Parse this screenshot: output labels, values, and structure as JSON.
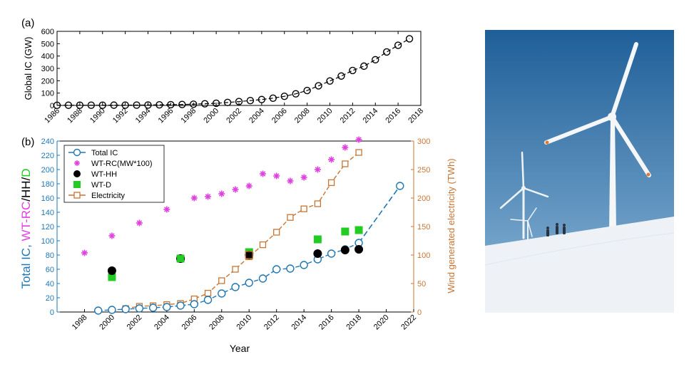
{
  "panel_a": {
    "label": "(a)",
    "chart_data": {
      "type": "line",
      "ylabel": "Global IC (GW)",
      "xlim": [
        1986,
        2018
      ],
      "ylim": [
        0,
        600
      ],
      "xticks": [
        "1986",
        "1988",
        "1990",
        "1992",
        "1994",
        "1996",
        "1998",
        "2000",
        "2002",
        "2004",
        "2006",
        "2008",
        "2010",
        "2012",
        "2014",
        "2016",
        "2018"
      ],
      "yticks": [
        "0",
        "100",
        "200",
        "300",
        "400",
        "500",
        "600"
      ],
      "series": [
        {
          "x": [
            1986,
            1987,
            1988,
            1989,
            1990,
            1991,
            1992,
            1993,
            1994,
            1995,
            1996,
            1997,
            1998,
            1999,
            2000,
            2001,
            2002,
            2003,
            2004,
            2005,
            2006,
            2007,
            2008,
            2009,
            2010,
            2011,
            2012,
            2013,
            2014,
            2015,
            2016,
            2017
          ],
          "y": [
            1,
            1.5,
            1.6,
            1.7,
            2,
            2.2,
            2.5,
            2.8,
            3.5,
            4.8,
            6.1,
            7.5,
            10,
            13.6,
            17.4,
            23.9,
            31.1,
            39.4,
            47.6,
            59,
            74,
            94,
            121,
            159,
            198,
            238,
            283,
            318,
            370,
            433,
            487,
            540
          ]
        }
      ]
    }
  },
  "panel_b": {
    "label": "(b)",
    "ylabel_parts": [
      {
        "text": "Total IC, ",
        "color": "#1f77b4"
      },
      {
        "text": "WT-RC",
        "color": "#e040e0"
      },
      {
        "text": "/HH/",
        "color": "#000000"
      },
      {
        "text": "D",
        "color": "#22cc22"
      }
    ],
    "chart_data": {
      "type": "line",
      "xlabel": "Year",
      "ylabel_right": "Wind generated electricity (TWh)",
      "xlim": [
        1996,
        2022
      ],
      "ylim_left": [
        0,
        240
      ],
      "ylim_right": [
        0,
        300
      ],
      "xticks": [
        "1998",
        "2000",
        "2002",
        "2004",
        "2006",
        "2008",
        "2010",
        "2012",
        "2014",
        "2016",
        "2018",
        "2020",
        "2022"
      ],
      "yticks_left": [
        "0",
        "20",
        "40",
        "60",
        "80",
        "100",
        "120",
        "140",
        "160",
        "180",
        "200",
        "220",
        "240"
      ],
      "yticks_right": [
        "0",
        "50",
        "100",
        "150",
        "200",
        "250",
        "300"
      ],
      "legend_position": "top-left",
      "series": [
        {
          "name": "Total IC",
          "color": "#1f77b4",
          "x": [
            1999,
            2000,
            2001,
            2002,
            2003,
            2004,
            2005,
            2006,
            2007,
            2008,
            2009,
            2010,
            2011,
            2012,
            2013,
            2014,
            2015,
            2016,
            2017,
            2018
          ],
          "y": [
            2,
            3,
            4,
            5,
            6,
            7,
            9,
            11,
            17,
            26,
            35,
            41,
            47,
            60,
            61,
            66,
            74,
            82,
            88,
            97
          ],
          "projection": {
            "x": [
              2018,
              2021
            ],
            "y": [
              97,
              177
            ]
          }
        },
        {
          "name": "WT-RC(MW*100)",
          "color": "#e040e0",
          "x": [
            1998,
            2000,
            2002,
            2004,
            2006,
            2007,
            2008,
            2009,
            2010,
            2011,
            2012,
            2013,
            2014,
            2015,
            2016,
            2017,
            2018
          ],
          "y": [
            83,
            107,
            125,
            144,
            160,
            162,
            166,
            172,
            177,
            194,
            191,
            184,
            189,
            200,
            214,
            231,
            242
          ]
        },
        {
          "name": "WT-HH",
          "color": "#000000",
          "x": [
            2000,
            2005,
            2010,
            2015,
            2017,
            2018
          ],
          "y": [
            58,
            75,
            80,
            82,
            87,
            88
          ]
        },
        {
          "name": "WT-D",
          "color": "#22cc22",
          "x": [
            2000,
            2005,
            2010,
            2015,
            2017,
            2018
          ],
          "y": [
            49,
            75,
            84,
            102,
            113,
            115
          ]
        },
        {
          "name": "Electricity",
          "color": "#c87533",
          "axis": "right",
          "x": [
            2001,
            2002,
            2003,
            2004,
            2005,
            2006,
            2007,
            2008,
            2009,
            2010,
            2011,
            2012,
            2013,
            2014,
            2015,
            2016,
            2017,
            2018
          ],
          "y": [
            6,
            10,
            11,
            13,
            15,
            23,
            33,
            55,
            75,
            97,
            118,
            140,
            166,
            181,
            190,
            227,
            260,
            280
          ]
        }
      ]
    }
  },
  "photo": {
    "colors": {
      "sky_top": "#1f5f98",
      "sky_bottom": "#8ab6d8",
      "snow": "#eef2f6",
      "turbine": "#f4f6f8",
      "tip": "#e07a30"
    }
  }
}
